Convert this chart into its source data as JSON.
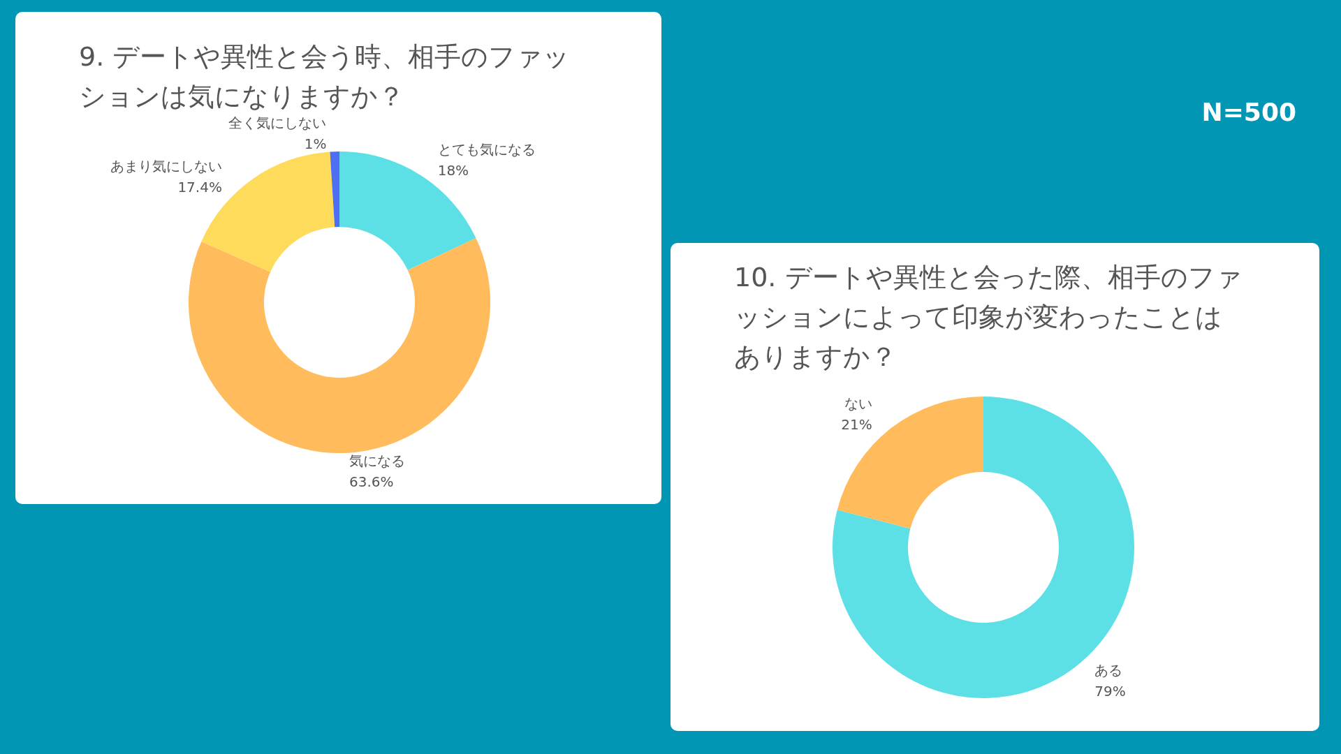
{
  "chart_data": [
    {
      "type": "donut",
      "title": "9. デートや異性と会う時、相手のファッションは気になりますか？",
      "categories": [
        "とても気になる",
        "気になる",
        "あまり気にしない",
        "全く気にしない"
      ],
      "values": [
        18,
        63.6,
        17.4,
        1
      ],
      "value_labels": [
        "18%",
        "63.6%",
        "17.4%",
        "1%"
      ],
      "colors": [
        "#5ce0e6",
        "#ffbb5c",
        "#ffdb5c",
        "#4f6ef2"
      ],
      "legend": false
    },
    {
      "type": "donut",
      "title": "10. デートや異性と会った際、相手のファッションによって印象が変わったことはありますか？",
      "categories": [
        "ある",
        "ない"
      ],
      "values": [
        79,
        21
      ],
      "value_labels": [
        "79%",
        "21%"
      ],
      "colors": [
        "#5ce0e6",
        "#ffbb5c"
      ],
      "legend": false,
      "annotations": [
        "N=500"
      ]
    }
  ]
}
